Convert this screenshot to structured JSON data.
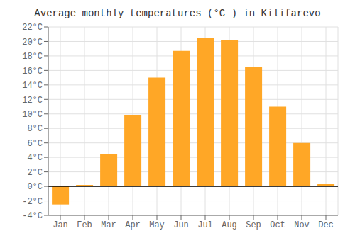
{
  "chart_data": {
    "type": "bar",
    "title": "Average monthly temperatures (°C ) in Kilifarevo",
    "categories": [
      "Jan",
      "Feb",
      "Mar",
      "Apr",
      "May",
      "Jun",
      "Jul",
      "Aug",
      "Sep",
      "Oct",
      "Nov",
      "Dec"
    ],
    "values": [
      -2.5,
      0.2,
      4.5,
      9.8,
      15.0,
      18.7,
      20.5,
      20.2,
      16.5,
      11.0,
      6.0,
      0.4
    ],
    "color": "#FFA726",
    "ylim": [
      -4,
      22
    ],
    "yticks": [
      {
        "value": -4,
        "label": "-4°C"
      },
      {
        "value": -2,
        "label": "-2°C"
      },
      {
        "value": 0,
        "label": "0°C"
      },
      {
        "value": 2,
        "label": "2°C"
      },
      {
        "value": 4,
        "label": "4°C"
      },
      {
        "value": 6,
        "label": "6°C"
      },
      {
        "value": 8,
        "label": "8°C"
      },
      {
        "value": 10,
        "label": "10°C"
      },
      {
        "value": 12,
        "label": "12°C"
      },
      {
        "value": 14,
        "label": "14°C"
      },
      {
        "value": 16,
        "label": "16°C"
      },
      {
        "value": 18,
        "label": "18°C"
      },
      {
        "value": 20,
        "label": "20°C"
      },
      {
        "value": 22,
        "label": "22°C"
      }
    ],
    "grid": true
  }
}
